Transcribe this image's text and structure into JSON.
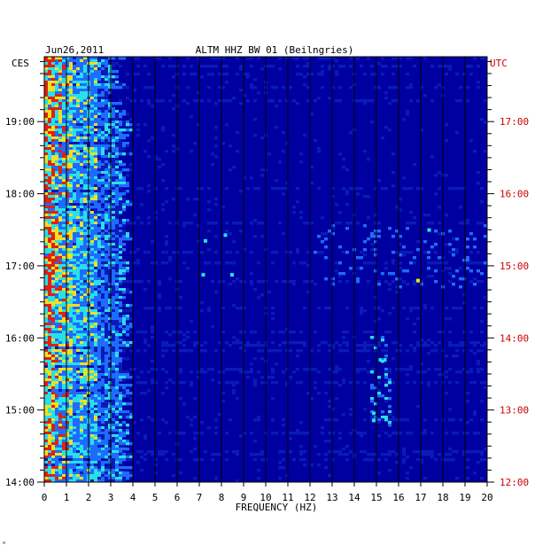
{
  "chart_data": {
    "type": "heatmap",
    "title": "ALTM HHZ BW 01 (Beilngries)",
    "date": "Jun26,2011",
    "xlabel": "FREQUENCY (HZ)",
    "left_axis_label": "CES",
    "right_axis_label": "UTC",
    "xlim": [
      0,
      20
    ],
    "x_ticks": [
      "0",
      "1",
      "2",
      "3",
      "4",
      "5",
      "6",
      "7",
      "8",
      "9",
      "10",
      "11",
      "12",
      "13",
      "14",
      "15",
      "16",
      "17",
      "18",
      "19",
      "20"
    ],
    "y_range_local_hours": [
      14,
      19.9
    ],
    "left_ticks": [
      {
        "label": "14:00",
        "hour": 14
      },
      {
        "label": "15:00",
        "hour": 15
      },
      {
        "label": "16:00",
        "hour": 16
      },
      {
        "label": "17:00",
        "hour": 17
      },
      {
        "label": "18:00",
        "hour": 18
      },
      {
        "label": "19:00",
        "hour": 19
      }
    ],
    "right_ticks": [
      {
        "label": "12:00",
        "hour": 14
      },
      {
        "label": "13:00",
        "hour": 15
      },
      {
        "label": "14:00",
        "hour": 16
      },
      {
        "label": "15:00",
        "hour": 17
      },
      {
        "label": "16:00",
        "hour": 18
      },
      {
        "label": "17:00",
        "hour": 19
      }
    ],
    "colors": {
      "background": "#0000a0",
      "low": "#0a1ab8",
      "mid": "#1e6cff",
      "high": "#28e0e8",
      "peak": "#f0e020",
      "max": "#e02010",
      "utc_label": "#cc0000"
    }
  },
  "footer_mark": "ᵃ"
}
